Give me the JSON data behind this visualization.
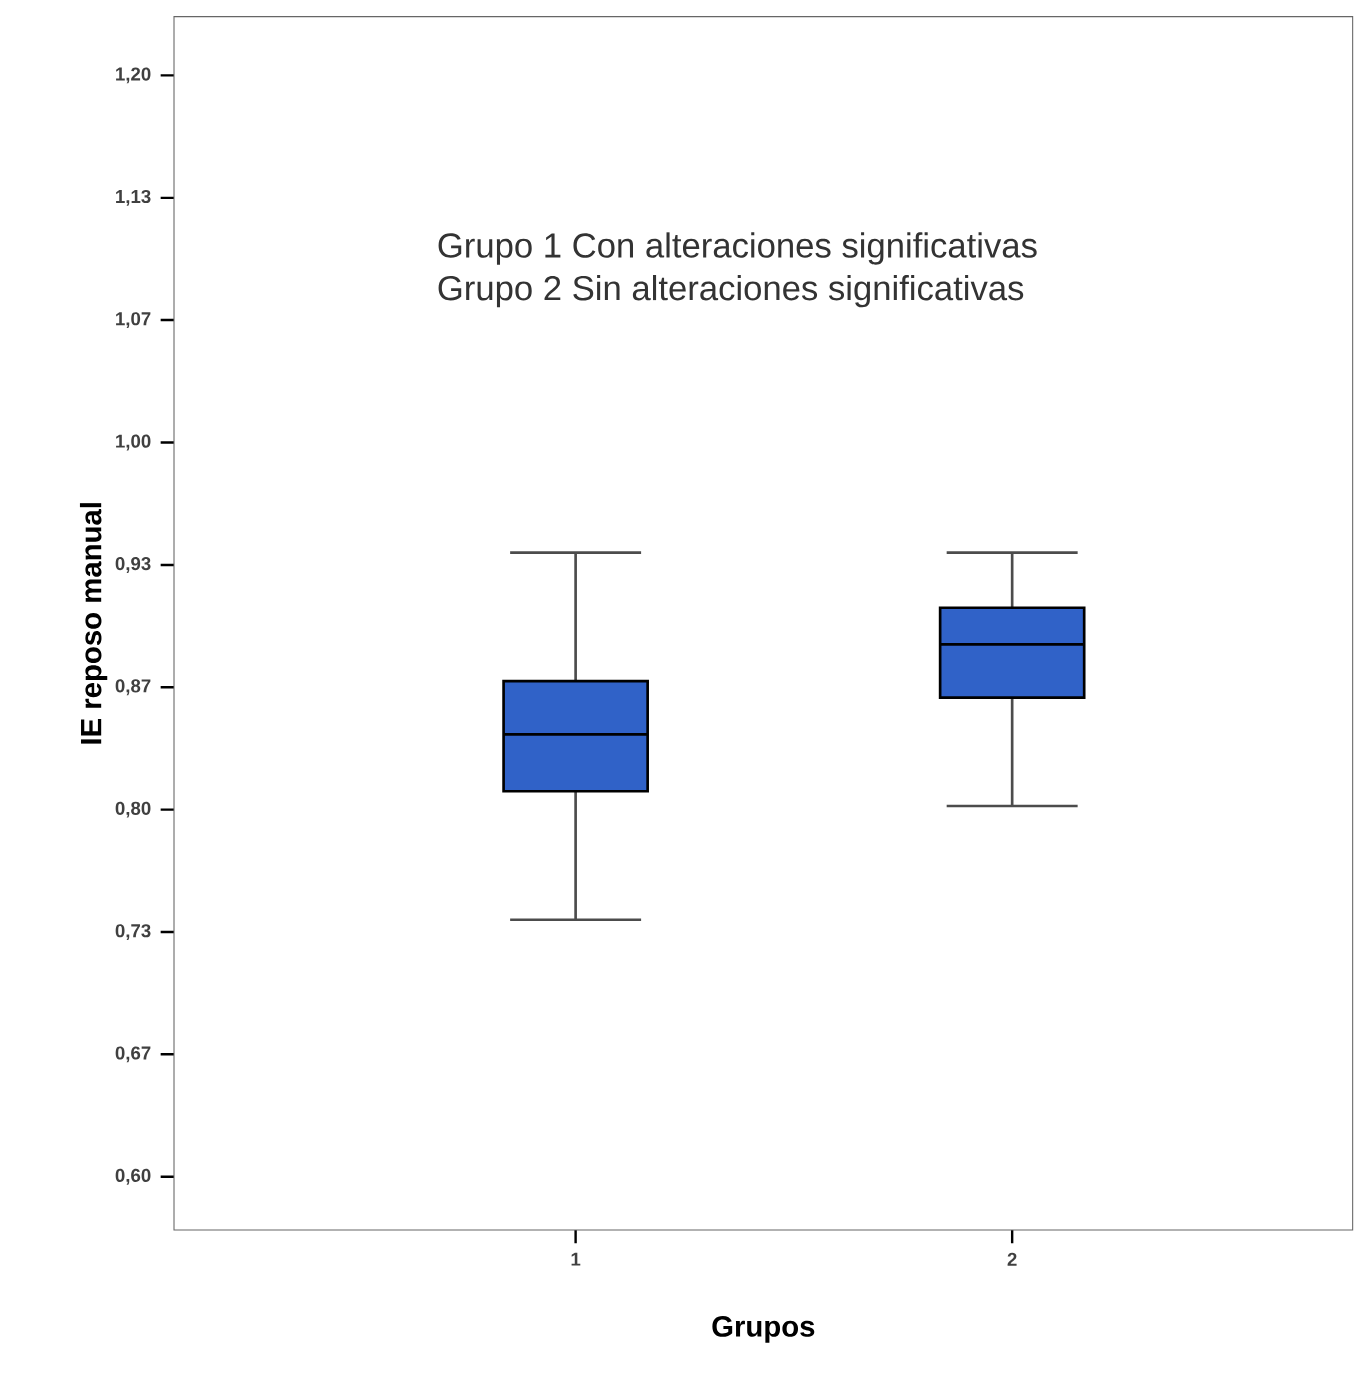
{
  "chart_data": {
    "type": "box",
    "xlabel": "Grupos",
    "ylabel": "IE reposo manual",
    "categories": [
      "1",
      "2"
    ],
    "color": "#3062c8",
    "boxes": [
      {
        "low": 0.74,
        "q1": 0.81,
        "median": 0.841,
        "q3": 0.87,
        "high": 0.94
      },
      {
        "low": 0.802,
        "q1": 0.861,
        "median": 0.89,
        "q3": 0.91,
        "high": 0.94
      }
    ],
    "ylim": [
      0.571,
      1.232
    ],
    "yticks": [
      {
        "value": 0.6,
        "label": "0,60"
      },
      {
        "value": 0.6667,
        "label": "0,67"
      },
      {
        "value": 0.7333,
        "label": "0,73"
      },
      {
        "value": 0.8,
        "label": "0,80"
      },
      {
        "value": 0.8667,
        "label": "0,87"
      },
      {
        "value": 0.9333,
        "label": "0,93"
      },
      {
        "value": 1.0,
        "label": "1,00"
      },
      {
        "value": 1.0667,
        "label": "1,07"
      },
      {
        "value": 1.1333,
        "label": "1,13"
      },
      {
        "value": 1.2,
        "label": "1,20"
      }
    ],
    "annotations": [
      "Grupo 1 Con alteraciones significativas",
      "Grupo 2 Sin alteraciones significativas"
    ]
  }
}
